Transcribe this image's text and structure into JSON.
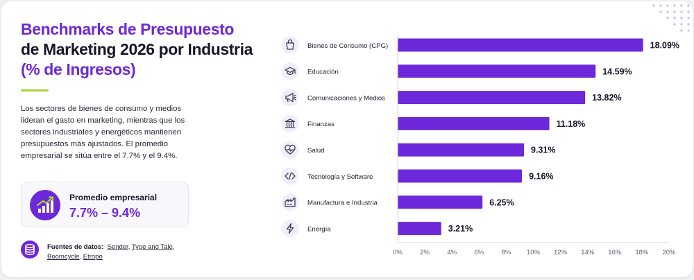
{
  "header": {
    "title_line1": "Benchmarks de Presupuesto",
    "title_line2": "de Marketing 2026 por Industria",
    "title_line3": "(% de Ingresos)"
  },
  "description": "Los sectores de bienes de consumo y medios lideran el gasto en marketing, mientras que los sectores industriales y energéticos mantienen presupuestos más ajustados. El promedio empresarial se sitúa entre el 7.7% y el 9.4%.",
  "average": {
    "label": "Promedio empresarial",
    "value": "7.7% – 9.4%",
    "icon": "growth-chart-icon"
  },
  "sources": {
    "label": "Fuentes de datos:",
    "items": [
      "Sender",
      "Type and Tale",
      "Boomcycle",
      "Etropo"
    ],
    "icon": "database-icon"
  },
  "colors": {
    "accent": "#6d28d9",
    "bar": "#6d28d9",
    "underline": "#a3d433",
    "text_dark": "#161629"
  },
  "chart_data": {
    "type": "bar",
    "orientation": "horizontal",
    "categories": [
      "Bienes de Consumo (CPG)",
      "Educación",
      "Comunicaciones y Medios",
      "Finanzas",
      "Salud",
      "Tecnología y Software",
      "Manufactura e Industria",
      "Energía"
    ],
    "icons": [
      "shopping-bag-icon",
      "graduation-cap-icon",
      "megaphone-icon",
      "bank-icon",
      "heart-pulse-icon",
      "code-icon",
      "factory-icon",
      "lightning-icon"
    ],
    "values": [
      18.09,
      14.59,
      13.82,
      11.18,
      9.31,
      9.16,
      6.25,
      3.21
    ],
    "value_labels": [
      "18.09%",
      "14.59%",
      "13.82%",
      "11.18%",
      "9.31%",
      "9.16%",
      "6.25%",
      "3.21%"
    ],
    "xlim": [
      0,
      20
    ],
    "xticks": [
      0,
      2,
      4,
      6,
      8,
      10,
      12,
      14,
      16,
      18,
      20
    ],
    "xtick_labels": [
      "0%",
      "2%",
      "4%",
      "6%",
      "8%",
      "10%",
      "12%",
      "14%",
      "16%",
      "18%",
      "20%"
    ],
    "grid": false,
    "legend": "none"
  }
}
